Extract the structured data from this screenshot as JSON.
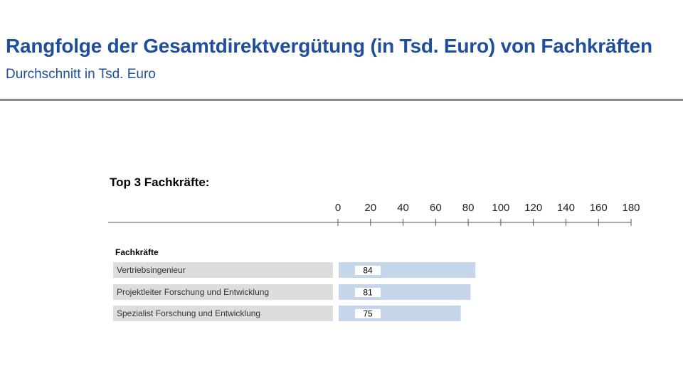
{
  "header": {
    "title": "Rangfolge der Gesamtdirektvergütung (in Tsd. Euro) von Fachkräften",
    "subtitle": "Durchschnitt in Tsd. Euro"
  },
  "section": {
    "title": "Top 3 Fachkräfte:"
  },
  "chart_data": {
    "type": "bar",
    "orientation": "horizontal",
    "category_header": "Fachkräfte",
    "categories": [
      "Vertriebsingenieur",
      "Projektleiter Forschung und Entwicklung",
      "Spezialist Forschung und Entwicklung"
    ],
    "values": [
      84,
      81,
      75
    ],
    "value_labels": [
      "84",
      "81",
      "75"
    ],
    "xlim": [
      0,
      180
    ],
    "ticks": [
      "0",
      "20",
      "40",
      "60",
      "80",
      "100",
      "120",
      "140",
      "160",
      "180"
    ],
    "axis_position": "top",
    "grid": false,
    "colors": {
      "bar": "#c5d5ea",
      "label_bg": "#dddddd",
      "value_box": "#ffffff",
      "axis": "#555555",
      "title": "#1f4e9c"
    }
  }
}
